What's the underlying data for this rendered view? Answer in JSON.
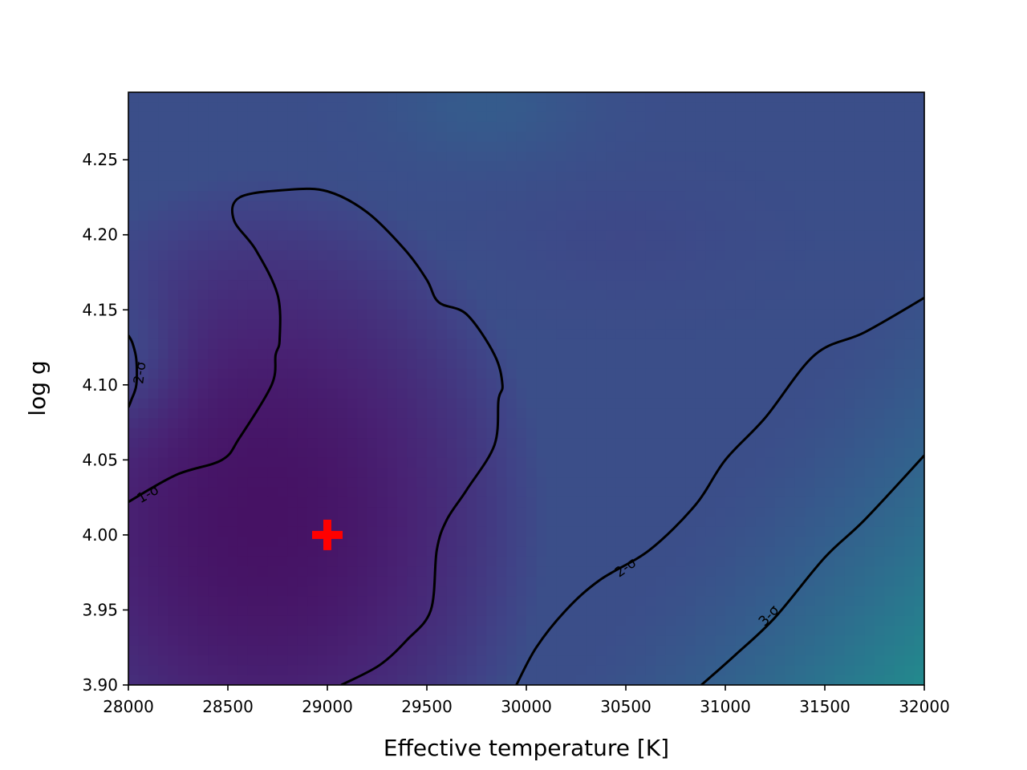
{
  "chart_data": {
    "type": "heatmap",
    "title": "",
    "xlabel": "Effective temperature [K]",
    "ylabel": "log g",
    "xlim": [
      28000,
      32000
    ],
    "ylim": [
      3.9,
      4.295
    ],
    "xticks": [
      28000,
      28500,
      29000,
      29500,
      30000,
      30500,
      31000,
      31500,
      32000
    ],
    "xtick_labels": [
      "28000",
      "28500",
      "29000",
      "29500",
      "30000",
      "30500",
      "31000",
      "31500",
      "32000"
    ],
    "yticks": [
      3.9,
      3.95,
      4.0,
      4.05,
      4.1,
      4.15,
      4.2,
      4.25
    ],
    "ytick_labels": [
      "3.90",
      "3.95",
      "4.00",
      "4.05",
      "4.10",
      "4.15",
      "4.20",
      "4.25"
    ],
    "colormap": "viridis",
    "grid": false,
    "best_fit_marker": {
      "teff": 29000,
      "logg": 4.0,
      "color": "#ff0000",
      "symbol": "+"
    },
    "contours": [
      {
        "label": "1-σ",
        "label_at": {
          "teff": 28100,
          "logg": 4.027
        },
        "points": [
          [
            28000,
            4.022
          ],
          [
            28240,
            4.04
          ],
          [
            28470,
            4.05
          ],
          [
            28560,
            4.065
          ],
          [
            28720,
            4.1
          ],
          [
            28740,
            4.12
          ],
          [
            28760,
            4.13
          ],
          [
            28750,
            4.16
          ],
          [
            28640,
            4.19
          ],
          [
            28530,
            4.21
          ],
          [
            28560,
            4.225
          ],
          [
            28800,
            4.23
          ],
          [
            29000,
            4.229
          ],
          [
            29200,
            4.215
          ],
          [
            29390,
            4.19
          ],
          [
            29500,
            4.17
          ],
          [
            29560,
            4.155
          ],
          [
            29700,
            4.147
          ],
          [
            29840,
            4.12
          ],
          [
            29880,
            4.1
          ],
          [
            29860,
            4.09
          ],
          [
            29840,
            4.06
          ],
          [
            29700,
            4.03
          ],
          [
            29600,
            4.01
          ],
          [
            29550,
            3.99
          ],
          [
            29520,
            3.95
          ],
          [
            29400,
            3.93
          ],
          [
            29260,
            3.913
          ],
          [
            29070,
            3.9
          ]
        ]
      },
      {
        "label": "2-σ",
        "label_at": {
          "teff": 28060,
          "logg": 4.108
        },
        "points": [
          [
            28000,
            4.133
          ],
          [
            28020,
            4.128
          ],
          [
            28040,
            4.117
          ],
          [
            28040,
            4.1
          ],
          [
            28015,
            4.09
          ],
          [
            28000,
            4.085
          ]
        ]
      },
      {
        "label": "2-σ",
        "label_at": {
          "teff": 30500,
          "logg": 3.978
        },
        "points": [
          [
            29950,
            3.9
          ],
          [
            30050,
            3.925
          ],
          [
            30200,
            3.95
          ],
          [
            30370,
            3.97
          ],
          [
            30620,
            3.99
          ],
          [
            30850,
            4.02
          ],
          [
            31000,
            4.05
          ],
          [
            31200,
            4.078
          ],
          [
            31450,
            4.12
          ],
          [
            31700,
            4.135
          ],
          [
            32000,
            4.158
          ]
        ]
      },
      {
        "label": "3-σ",
        "label_at": {
          "teff": 31220,
          "logg": 3.946
        },
        "points": [
          [
            30880,
            3.9
          ],
          [
            31050,
            3.92
          ],
          [
            31250,
            3.945
          ],
          [
            31500,
            3.985
          ],
          [
            31700,
            4.01
          ],
          [
            32000,
            4.053
          ]
        ]
      }
    ]
  }
}
